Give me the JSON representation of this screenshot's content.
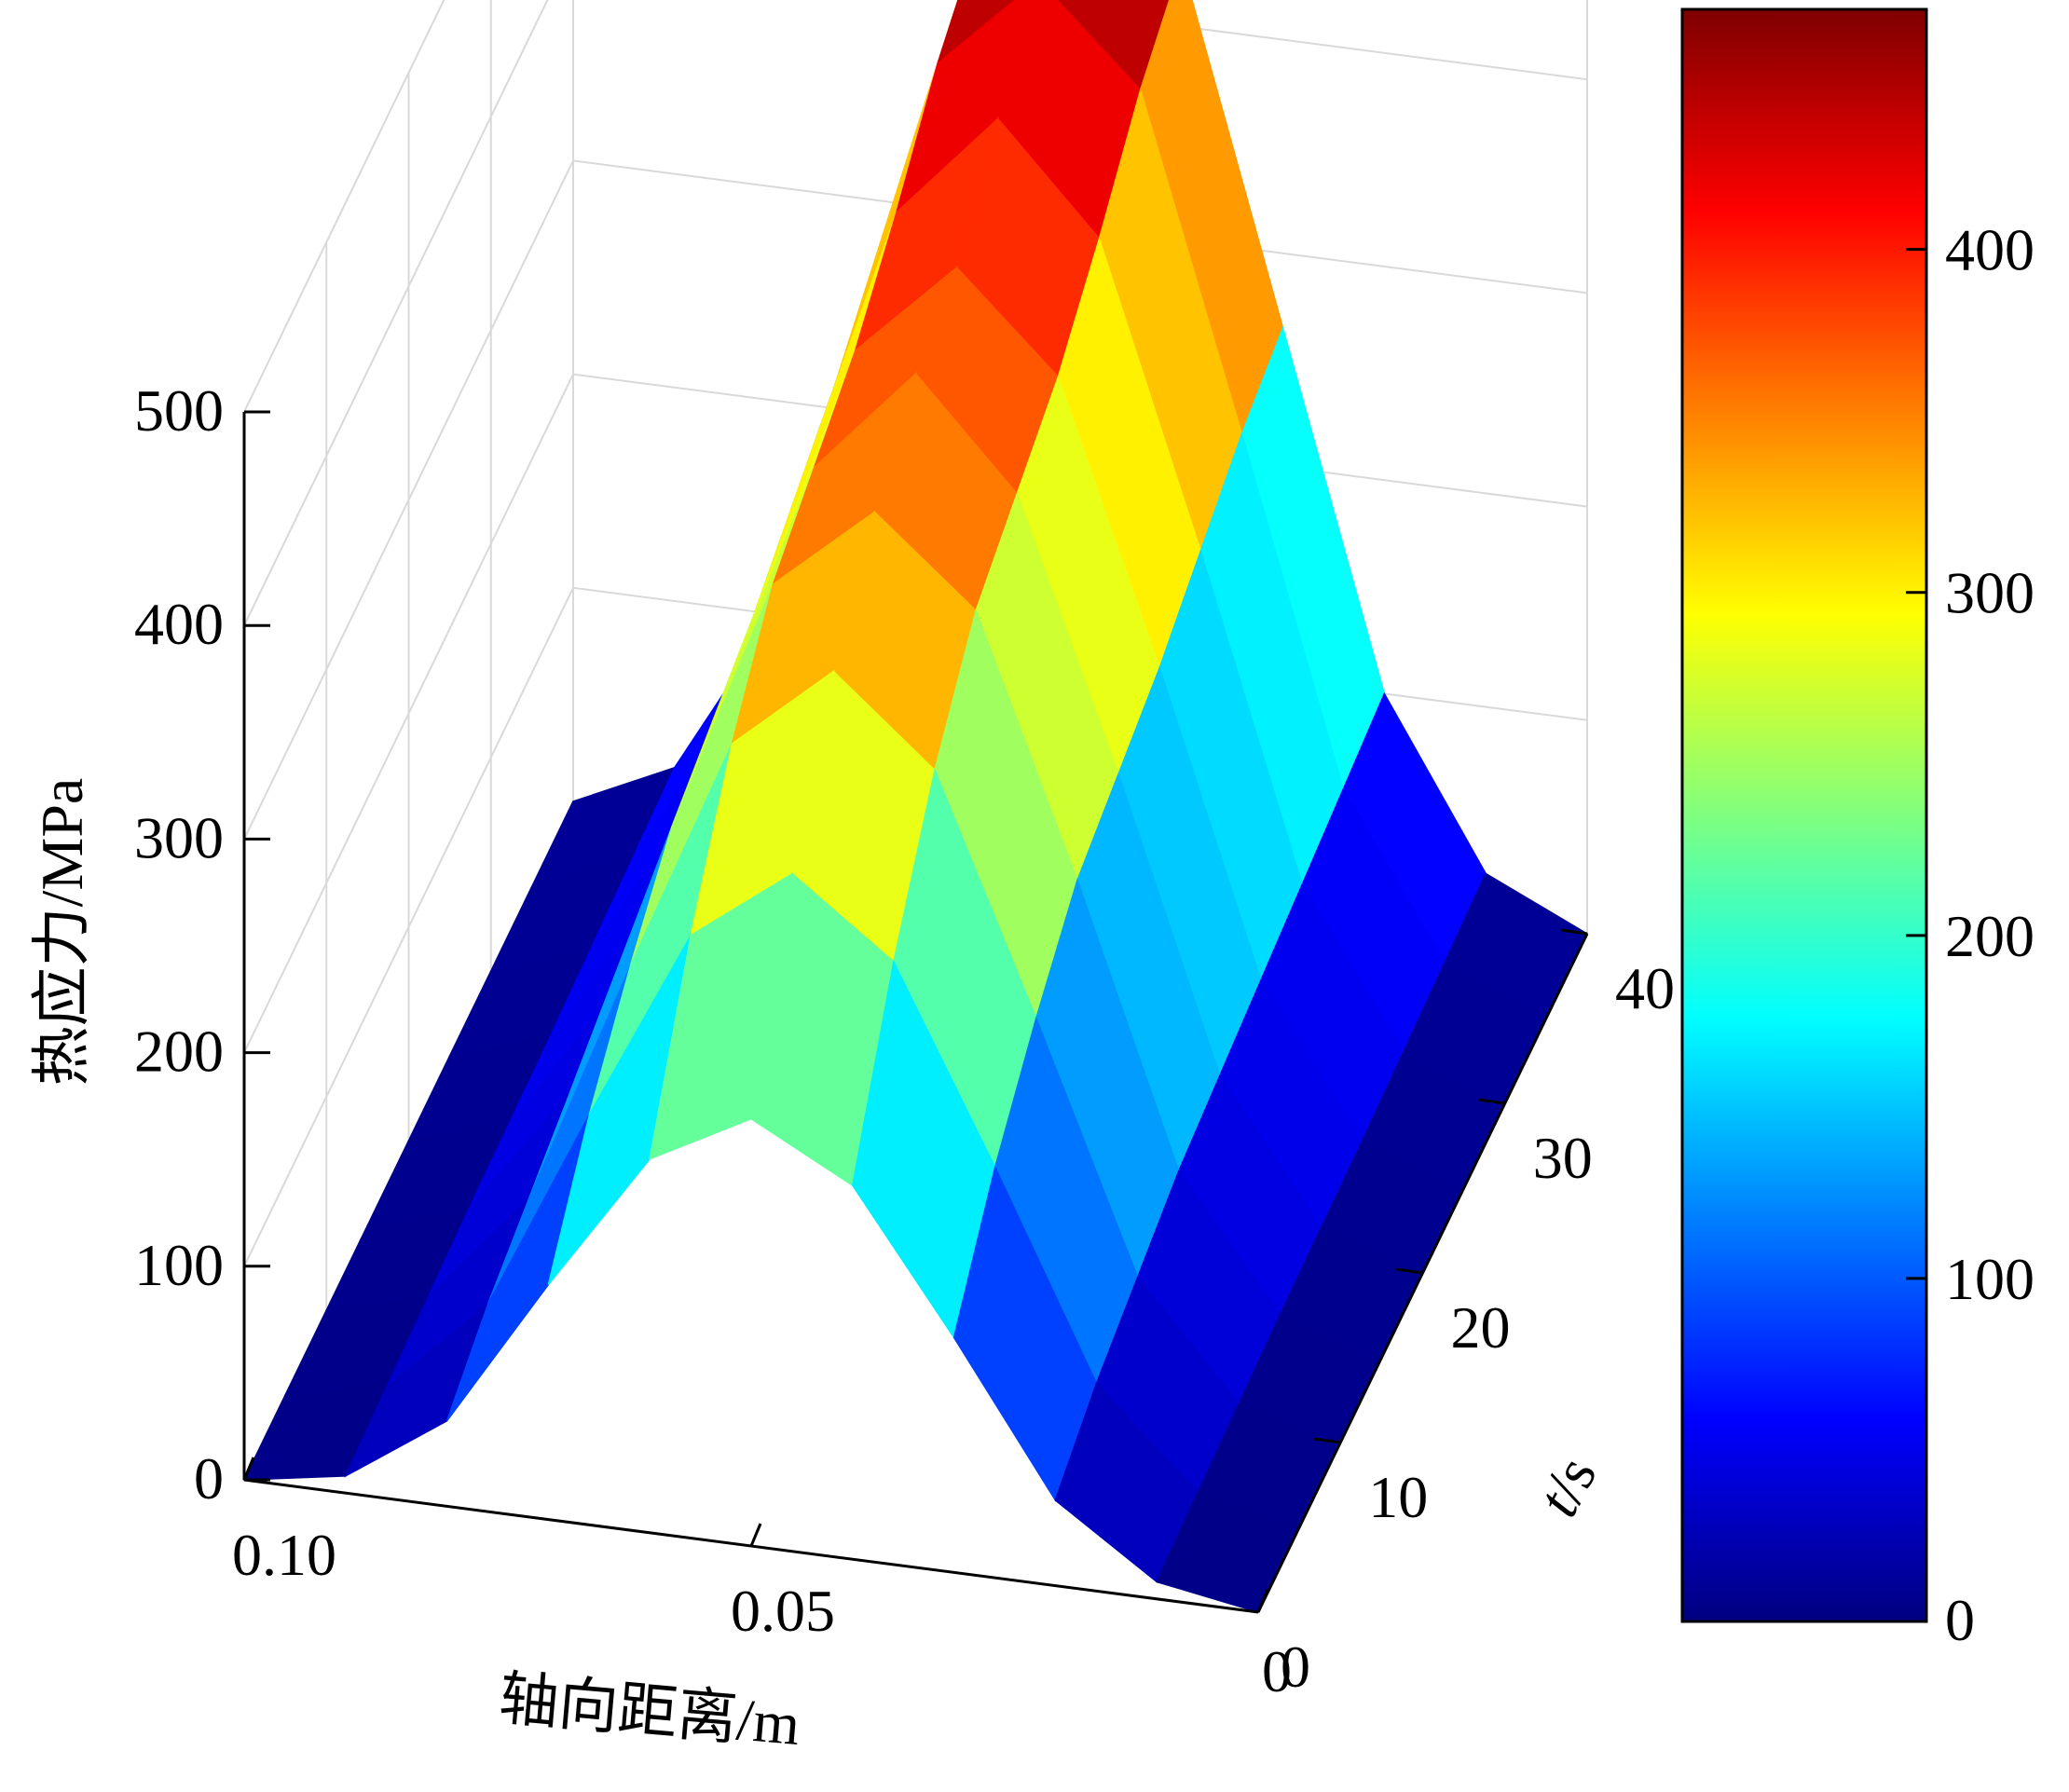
{
  "chart_data": {
    "type": "surface",
    "zlabel": "热应力/MPa",
    "xlabel": "轴向距离/m",
    "ylabel_italic": "t",
    "ylabel_rest": "/s",
    "z_ticks": [
      "0",
      "100",
      "200",
      "300",
      "400",
      "500"
    ],
    "x_ticks": [
      "0.10",
      "0.05",
      "0"
    ],
    "t_ticks": [
      "10",
      "20",
      "30",
      "40"
    ],
    "t_zero_tick": "0",
    "zlim": [
      0,
      500
    ],
    "xlim": [
      0,
      0.1
    ],
    "tlim": [
      0,
      40
    ],
    "colorbar_ticks": [
      "0",
      "100",
      "200",
      "300",
      "400"
    ],
    "colorbar_range": [
      0,
      470
    ],
    "colormap": "jet",
    "grid": true,
    "peak": {
      "value": 470,
      "x": 0.055,
      "t": 40
    },
    "crater": {
      "value": 390,
      "x": 0.058,
      "t": 20
    },
    "surface_rows_t": [
      0,
      5,
      10,
      15,
      20,
      25,
      30,
      35,
      40
    ],
    "surface_cols_x": [
      0.1,
      0.09,
      0.08,
      0.07,
      0.06,
      0.05,
      0.04,
      0.03,
      0.02,
      0.01,
      0.0
    ],
    "surface_z": [
      [
        0,
        8,
        40,
        110,
        175,
        200,
        175,
        110,
        40,
        8,
        0
      ],
      [
        0,
        10,
        55,
        150,
        240,
        275,
        240,
        150,
        55,
        10,
        0
      ],
      [
        0,
        12,
        65,
        180,
        290,
        330,
        290,
        180,
        65,
        12,
        0
      ],
      [
        0,
        14,
        75,
        205,
        325,
        365,
        325,
        205,
        75,
        14,
        0
      ],
      [
        0,
        15,
        80,
        215,
        340,
        390,
        340,
        215,
        80,
        15,
        0
      ],
      [
        0,
        16,
        85,
        225,
        355,
        400,
        355,
        225,
        85,
        16,
        0
      ],
      [
        0,
        18,
        90,
        240,
        380,
        430,
        380,
        240,
        90,
        18,
        0
      ],
      [
        0,
        20,
        95,
        255,
        410,
        455,
        410,
        255,
        95,
        20,
        0
      ],
      [
        0,
        22,
        100,
        265,
        430,
        470,
        430,
        265,
        100,
        22,
        0
      ]
    ]
  }
}
